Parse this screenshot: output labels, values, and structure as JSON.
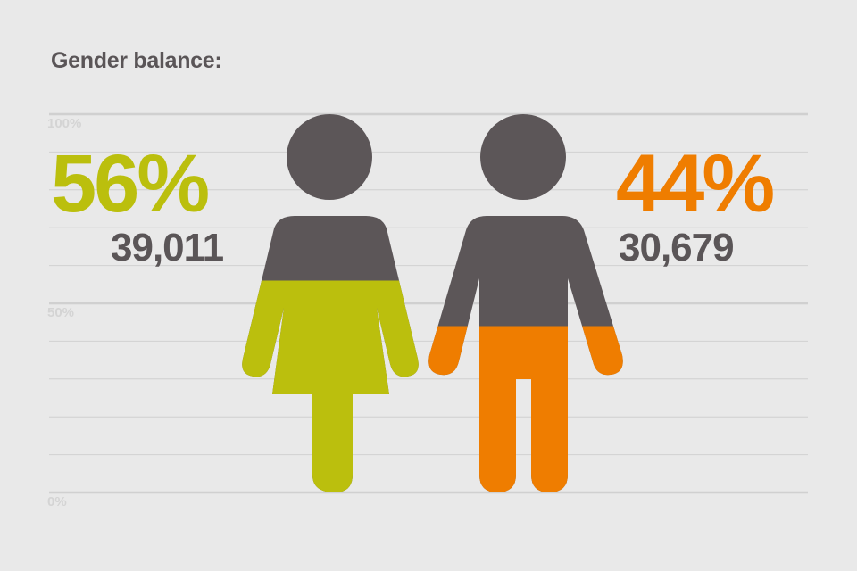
{
  "chart_data": {
    "type": "bar",
    "title": "Gender balance:",
    "y_ticks": [
      "100%",
      "50%",
      "0%"
    ],
    "ylim": [
      0,
      100
    ],
    "grid": true,
    "categories": [
      "Female",
      "Male"
    ],
    "values": [
      56,
      44
    ],
    "data_labels": [
      {
        "percent": "56%",
        "count": "39,011"
      },
      {
        "percent": "44%",
        "count": "30,679"
      }
    ],
    "colors": {
      "female": "#bbbf0d",
      "male": "#ef7d00",
      "unfilled": "#5c5658",
      "grid": "#d0d0d0"
    }
  }
}
